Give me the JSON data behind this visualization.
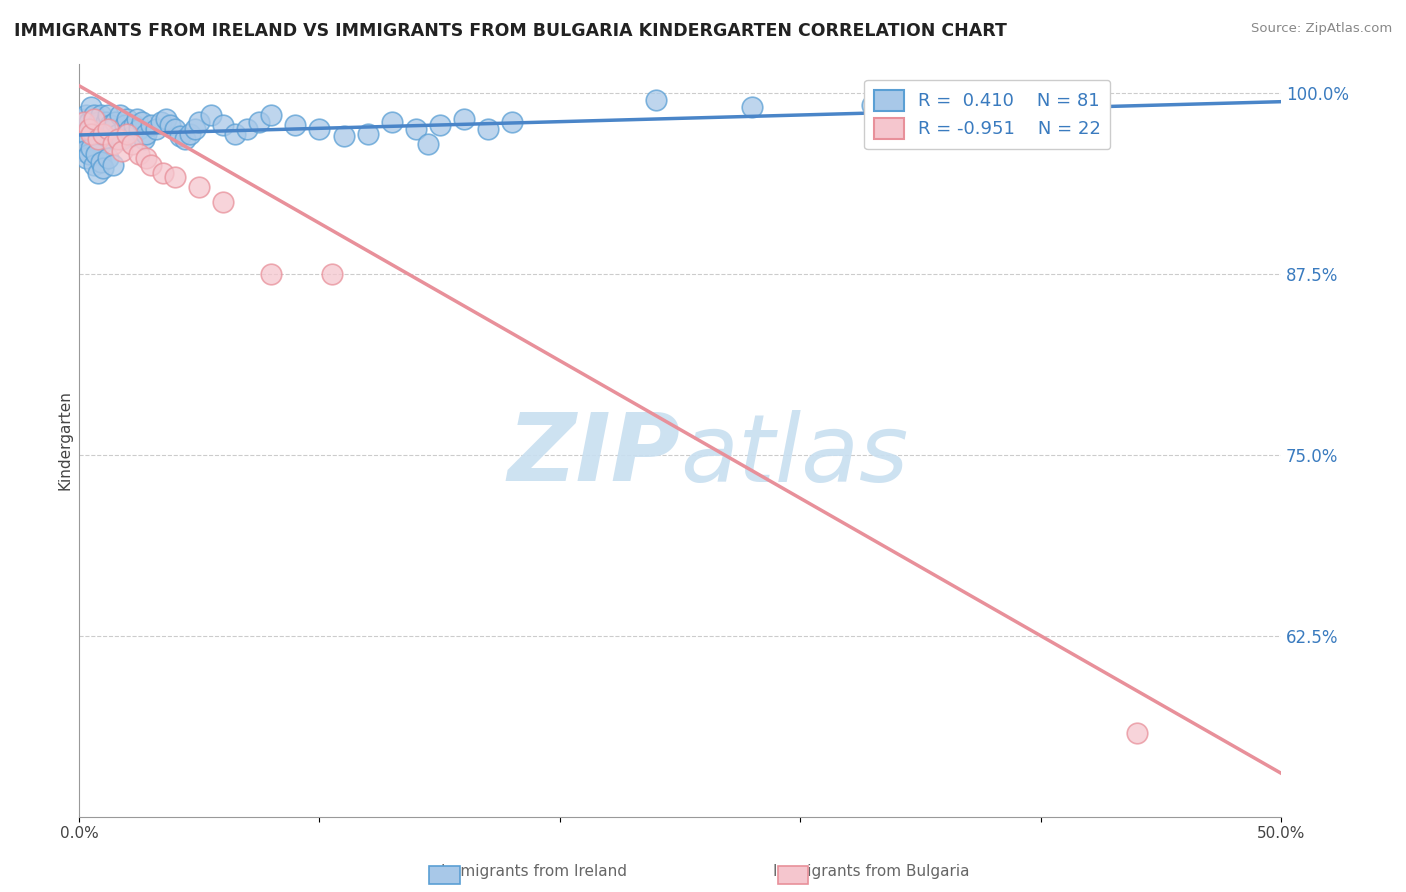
{
  "title": "IMMIGRANTS FROM IRELAND VS IMMIGRANTS FROM BULGARIA KINDERGARTEN CORRELATION CHART",
  "source": "Source: ZipAtlas.com",
  "ylabel": "Kindergarten",
  "xlim": [
    0.0,
    0.5
  ],
  "ylim": [
    0.5,
    1.02
  ],
  "xtick_positions": [
    0.0,
    0.1,
    0.2,
    0.3,
    0.4,
    0.5
  ],
  "xticklabels": [
    "0.0%",
    "",
    "",
    "",
    "",
    "50.0%"
  ],
  "yticks_right": [
    0.625,
    0.75,
    0.875,
    1.0
  ],
  "yticklabels_right": [
    "62.5%",
    "75.0%",
    "87.5%",
    "100.0%"
  ],
  "ireland_color": "#a8c8e8",
  "ireland_edge": "#5a9fd4",
  "bulgaria_color": "#f5c6ce",
  "bulgaria_edge": "#e8909a",
  "ireland_R": 0.41,
  "ireland_N": 81,
  "bulgaria_R": -0.951,
  "bulgaria_N": 22,
  "legend_R_color": "#3a7bbf",
  "watermark_color": "#c8dff0",
  "background_color": "#ffffff",
  "grid_color": "#cccccc",
  "ireland_trendline_x": [
    0.0,
    0.5
  ],
  "ireland_trendline_y": [
    0.971,
    0.994
  ],
  "ireland_trendline_color": "#4a85c8",
  "bulgaria_trendline_x": [
    0.0,
    0.5
  ],
  "bulgaria_trendline_y": [
    1.005,
    0.53
  ],
  "bulgaria_trendline_color": "#e8909a",
  "dashed_line_y": 0.98,
  "ireland_scatter_x": [
    0.001,
    0.002,
    0.003,
    0.003,
    0.004,
    0.004,
    0.005,
    0.005,
    0.006,
    0.006,
    0.007,
    0.007,
    0.008,
    0.008,
    0.009,
    0.009,
    0.01,
    0.01,
    0.011,
    0.011,
    0.012,
    0.013,
    0.014,
    0.015,
    0.016,
    0.017,
    0.018,
    0.019,
    0.02,
    0.021,
    0.022,
    0.023,
    0.024,
    0.025,
    0.026,
    0.027,
    0.028,
    0.03,
    0.032,
    0.034,
    0.036,
    0.038,
    0.04,
    0.042,
    0.044,
    0.046,
    0.048,
    0.05,
    0.055,
    0.06,
    0.065,
    0.07,
    0.075,
    0.08,
    0.09,
    0.1,
    0.11,
    0.12,
    0.13,
    0.14,
    0.15,
    0.16,
    0.17,
    0.18,
    0.002,
    0.003,
    0.004,
    0.005,
    0.006,
    0.007,
    0.008,
    0.009,
    0.01,
    0.012,
    0.014,
    0.24,
    0.28,
    0.33,
    0.38,
    0.4,
    0.145
  ],
  "ireland_scatter_y": [
    0.982,
    0.978,
    0.985,
    0.972,
    0.98,
    0.968,
    0.99,
    0.975,
    0.985,
    0.97,
    0.978,
    0.962,
    0.98,
    0.972,
    0.985,
    0.965,
    0.975,
    0.968,
    0.98,
    0.972,
    0.985,
    0.978,
    0.975,
    0.98,
    0.972,
    0.985,
    0.968,
    0.978,
    0.982,
    0.975,
    0.97,
    0.978,
    0.982,
    0.975,
    0.98,
    0.968,
    0.972,
    0.978,
    0.975,
    0.98,
    0.982,
    0.978,
    0.975,
    0.97,
    0.968,
    0.972,
    0.975,
    0.98,
    0.985,
    0.978,
    0.972,
    0.975,
    0.98,
    0.985,
    0.978,
    0.975,
    0.97,
    0.972,
    0.98,
    0.975,
    0.978,
    0.982,
    0.975,
    0.98,
    0.96,
    0.955,
    0.958,
    0.962,
    0.95,
    0.958,
    0.945,
    0.952,
    0.948,
    0.955,
    0.95,
    0.995,
    0.99,
    0.992,
    0.997,
    1.0,
    0.965
  ],
  "bulgaria_scatter_x": [
    0.002,
    0.004,
    0.005,
    0.006,
    0.008,
    0.01,
    0.012,
    0.014,
    0.016,
    0.018,
    0.02,
    0.022,
    0.025,
    0.028,
    0.03,
    0.035,
    0.04,
    0.05,
    0.06,
    0.08,
    0.105,
    0.44
  ],
  "bulgaria_scatter_y": [
    0.98,
    0.975,
    0.972,
    0.982,
    0.968,
    0.972,
    0.975,
    0.965,
    0.968,
    0.96,
    0.972,
    0.965,
    0.958,
    0.955,
    0.95,
    0.945,
    0.942,
    0.935,
    0.925,
    0.875,
    0.875,
    0.558
  ]
}
